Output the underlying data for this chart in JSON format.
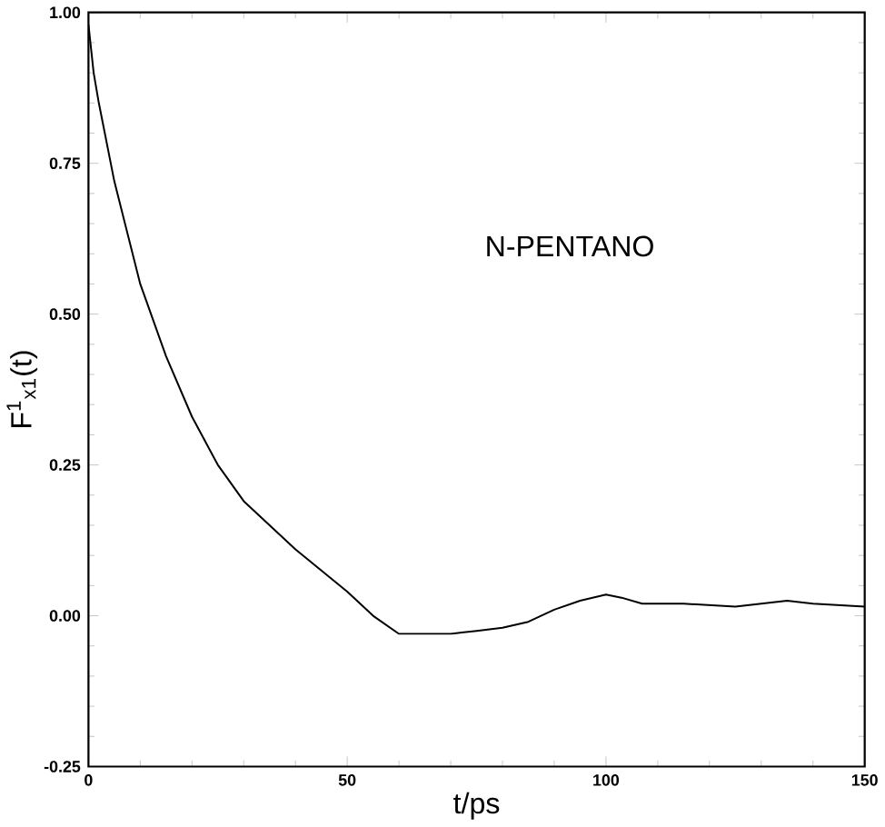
{
  "chart_data": {
    "type": "line",
    "xlabel": "t/ps",
    "ylabel": "F$^{1}$$_{x1}$(t)",
    "annotations": [
      "N-PENTANO"
    ],
    "x": [
      0,
      1,
      2,
      5,
      10,
      15,
      20,
      25,
      30,
      40,
      50,
      55,
      60,
      65,
      70,
      75,
      80,
      85,
      90,
      95,
      100,
      103,
      107,
      115,
      125,
      135,
      140,
      150
    ],
    "series": [
      {
        "color": "#000000",
        "values": [
          0.98,
          0.9,
          0.85,
          0.72,
          0.55,
          0.43,
          0.33,
          0.25,
          0.19,
          0.11,
          0.04,
          0.0,
          -0.03,
          -0.03,
          -0.03,
          -0.025,
          -0.02,
          -0.01,
          0.01,
          0.025,
          0.035,
          0.03,
          0.02,
          0.02,
          0.015,
          0.025,
          0.02,
          0.015
        ]
      }
    ],
    "xlim": [
      0,
      150
    ],
    "ylim": [
      -0.25,
      1.0
    ],
    "xticks": [
      0,
      50,
      100,
      150
    ],
    "yticks": [
      {
        "value": -0.25,
        "label": "-0.25"
      },
      {
        "value": 0,
        "label": "0.00"
      },
      {
        "value": 0.25,
        "label": "0.25"
      },
      {
        "value": 0.5,
        "label": "0.50"
      },
      {
        "value": 0.75,
        "label": "0.75"
      },
      {
        "value": 1.0,
        "label": "1.00"
      }
    ],
    "grid": false,
    "marker": "none",
    "line_style": "solid"
  }
}
